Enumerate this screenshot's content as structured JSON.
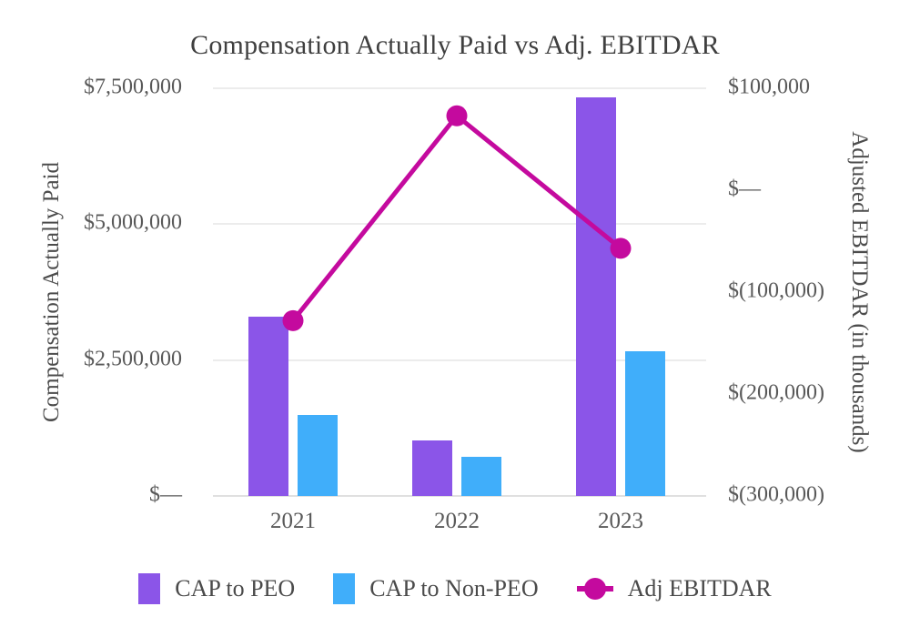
{
  "title": "Compensation Actually Paid vs Adj. EBITDAR",
  "colors": {
    "purple": "#8B55E8",
    "blue": "#40AEFA",
    "magenta": "#C40A9E",
    "grid": "#ECECEC",
    "baseline": "#E0E0E0",
    "title_text": "#3F3F3F",
    "tick_text": "#595959",
    "background": "#FFFFFF"
  },
  "chart_data": {
    "type": "bar",
    "subtype": "combo-bar-line-dual-axis",
    "title": "Compensation Actually Paid vs Adj. EBITDAR",
    "categories": [
      "2021",
      "2022",
      "2023"
    ],
    "series": [
      {
        "name": "CAP to PEO",
        "type": "bar",
        "axis": "left",
        "color_key": "purple",
        "values": [
          3300000,
          1020000,
          7330000
        ]
      },
      {
        "name": "CAP to Non-PEO",
        "type": "bar",
        "axis": "left",
        "color_key": "blue",
        "values": [
          1490000,
          720000,
          2660000
        ]
      },
      {
        "name": "Adj EBITDAR",
        "type": "line",
        "axis": "right",
        "color_key": "magenta",
        "values": [
          -128000,
          73000,
          -57000
        ]
      }
    ],
    "left_axis": {
      "label": "Compensation Actually Paid",
      "range": [
        0,
        7500000
      ],
      "ticks": [
        {
          "value": 7500000,
          "label": "$7,500,000"
        },
        {
          "value": 5000000,
          "label": "$5,000,000"
        },
        {
          "value": 2500000,
          "label": "$2,500,000"
        },
        {
          "value": 0,
          "label": "$—"
        }
      ]
    },
    "right_axis": {
      "label": "Adjusted EBITDAR (in thousands)",
      "range": [
        -300000,
        100000
      ],
      "ticks": [
        {
          "value": 100000,
          "label": "$100,000"
        },
        {
          "value": 0,
          "label": "$—"
        },
        {
          "value": -100000,
          "label": "$(100,000)"
        },
        {
          "value": -200000,
          "label": "$(200,000)"
        },
        {
          "value": -300000,
          "label": "$(300,000)"
        }
      ]
    },
    "legend": [
      {
        "name": "CAP to PEO",
        "marker": "square",
        "color_key": "purple"
      },
      {
        "name": "CAP to Non-PEO",
        "marker": "square",
        "color_key": "blue"
      },
      {
        "name": "Adj EBITDAR",
        "marker": "line-dot",
        "color_key": "magenta"
      }
    ],
    "grid": "horizontal-left-axis-ticks",
    "legend_position": "bottom"
  }
}
